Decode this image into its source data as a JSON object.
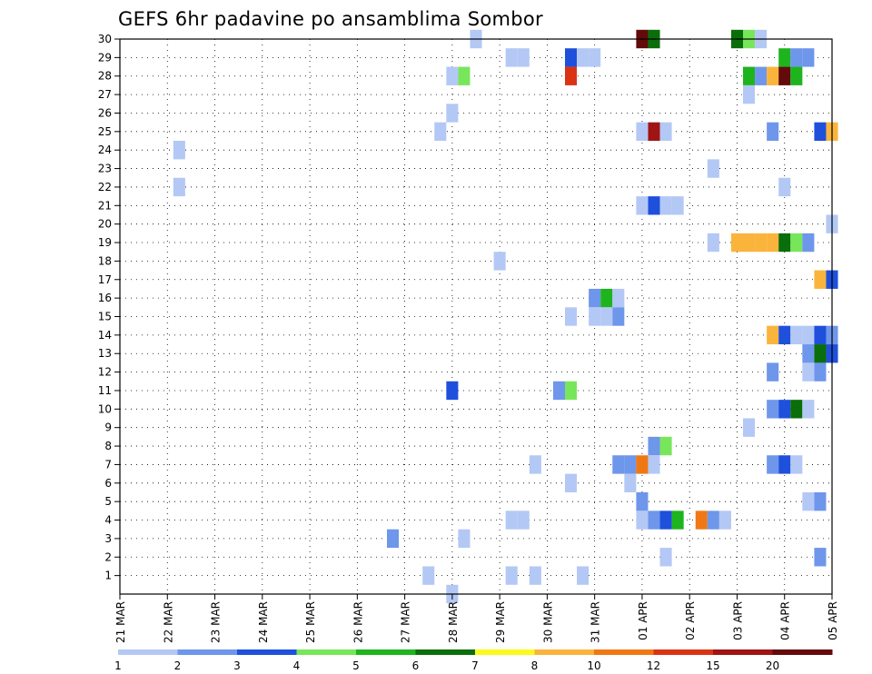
{
  "chart_data": {
    "type": "heatmap",
    "title": "GEFS 6hr padavine po ansamblima Sombor",
    "x_tick_labels": [
      "21 MAR",
      "22 MAR",
      "23 MAR",
      "24 MAR",
      "25 MAR",
      "26 MAR",
      "27 MAR",
      "28 MAR",
      "29 MAR",
      "30 MAR",
      "31 MAR",
      "01 APR",
      "02 APR",
      "03 APR",
      "04 APR",
      "05 APR"
    ],
    "x_range": [
      0,
      60
    ],
    "y_tick_labels": [
      "1",
      "2",
      "3",
      "4",
      "5",
      "6",
      "7",
      "8",
      "9",
      "10",
      "11",
      "12",
      "13",
      "14",
      "15",
      "16",
      "17",
      "18",
      "19",
      "20",
      "21",
      "22",
      "23",
      "24",
      "25",
      "26",
      "27",
      "28",
      "29",
      "30"
    ],
    "y_range": [
      0,
      30
    ],
    "grid": true,
    "colorbar": {
      "levels": [
        "1",
        "2",
        "3",
        "4",
        "5",
        "6",
        "7",
        "8",
        "10",
        "12",
        "15",
        "20"
      ],
      "colors": [
        "#b4c8f5",
        "#6e96eb",
        "#1e50dc",
        "#78e65a",
        "#1eb41e",
        "#0a6e0a",
        "#fafa1e",
        "#fab43c",
        "#f07814",
        "#dc3214",
        "#a01414",
        "#640a0a"
      ]
    },
    "cells": [
      [
        30,
        30,
        0
      ],
      [
        30,
        44,
        11
      ],
      [
        30,
        45,
        5
      ],
      [
        30,
        52,
        5
      ],
      [
        30,
        53,
        3
      ],
      [
        30,
        54,
        0
      ],
      [
        29,
        33,
        0
      ],
      [
        29,
        34,
        0
      ],
      [
        29,
        38,
        2
      ],
      [
        29,
        39,
        0
      ],
      [
        29,
        40,
        0
      ],
      [
        29,
        56,
        4
      ],
      [
        29,
        57,
        1
      ],
      [
        29,
        58,
        1
      ],
      [
        28,
        28,
        0
      ],
      [
        28,
        29,
        3
      ],
      [
        28,
        38,
        9
      ],
      [
        28,
        53,
        4
      ],
      [
        28,
        54,
        1
      ],
      [
        28,
        55,
        7
      ],
      [
        28,
        56,
        11
      ],
      [
        28,
        57,
        4
      ],
      [
        27,
        53,
        0
      ],
      [
        26,
        28,
        0
      ],
      [
        25,
        27,
        0
      ],
      [
        25,
        44,
        0
      ],
      [
        25,
        45,
        10
      ],
      [
        25,
        46,
        0
      ],
      [
        25,
        55,
        1
      ],
      [
        25,
        59,
        2
      ],
      [
        25,
        60,
        7
      ],
      [
        24,
        5,
        0
      ],
      [
        23,
        50,
        0
      ],
      [
        22,
        5,
        0
      ],
      [
        22,
        56,
        0
      ],
      [
        21,
        44,
        0
      ],
      [
        21,
        45,
        2
      ],
      [
        21,
        46,
        0
      ],
      [
        21,
        47,
        0
      ],
      [
        20,
        60,
        0
      ],
      [
        19,
        50,
        0
      ],
      [
        19,
        52,
        7
      ],
      [
        19,
        53,
        7
      ],
      [
        19,
        54,
        7
      ],
      [
        19,
        55,
        7
      ],
      [
        19,
        56,
        5
      ],
      [
        19,
        57,
        3
      ],
      [
        19,
        58,
        1
      ],
      [
        18,
        32,
        0
      ],
      [
        17,
        59,
        7
      ],
      [
        17,
        60,
        2
      ],
      [
        16,
        40,
        1
      ],
      [
        16,
        41,
        4
      ],
      [
        16,
        42,
        0
      ],
      [
        15,
        38,
        0
      ],
      [
        15,
        40,
        0
      ],
      [
        15,
        41,
        0
      ],
      [
        15,
        42,
        1
      ],
      [
        14,
        55,
        7
      ],
      [
        14,
        56,
        2
      ],
      [
        14,
        57,
        0
      ],
      [
        14,
        58,
        0
      ],
      [
        14,
        59,
        2
      ],
      [
        14,
        60,
        1
      ],
      [
        13,
        58,
        1
      ],
      [
        13,
        59,
        5
      ],
      [
        13,
        60,
        2
      ],
      [
        12,
        55,
        1
      ],
      [
        12,
        58,
        0
      ],
      [
        12,
        59,
        1
      ],
      [
        11,
        28,
        2
      ],
      [
        11,
        37,
        1
      ],
      [
        11,
        38,
        3
      ],
      [
        10,
        55,
        1
      ],
      [
        10,
        56,
        2
      ],
      [
        10,
        57,
        5
      ],
      [
        10,
        58,
        0
      ],
      [
        9,
        53,
        0
      ],
      [
        8,
        45,
        1
      ],
      [
        8,
        46,
        3
      ],
      [
        7,
        35,
        0
      ],
      [
        7,
        42,
        1
      ],
      [
        7,
        43,
        1
      ],
      [
        7,
        44,
        8
      ],
      [
        7,
        45,
        0
      ],
      [
        7,
        55,
        1
      ],
      [
        7,
        56,
        2
      ],
      [
        7,
        57,
        0
      ],
      [
        6,
        38,
        0
      ],
      [
        6,
        43,
        0
      ],
      [
        5,
        44,
        1
      ],
      [
        5,
        58,
        0
      ],
      [
        5,
        59,
        1
      ],
      [
        4,
        33,
        0
      ],
      [
        4,
        34,
        0
      ],
      [
        4,
        44,
        0
      ],
      [
        4,
        45,
        1
      ],
      [
        4,
        46,
        2
      ],
      [
        4,
        47,
        4
      ],
      [
        4,
        49,
        8
      ],
      [
        4,
        50,
        1
      ],
      [
        4,
        51,
        0
      ],
      [
        3,
        23,
        1
      ],
      [
        3,
        29,
        0
      ],
      [
        2,
        46,
        0
      ],
      [
        2,
        59,
        1
      ],
      [
        1,
        26,
        0
      ],
      [
        1,
        33,
        0
      ],
      [
        1,
        35,
        0
      ],
      [
        1,
        39,
        0
      ],
      [
        0,
        28,
        0
      ]
    ]
  }
}
